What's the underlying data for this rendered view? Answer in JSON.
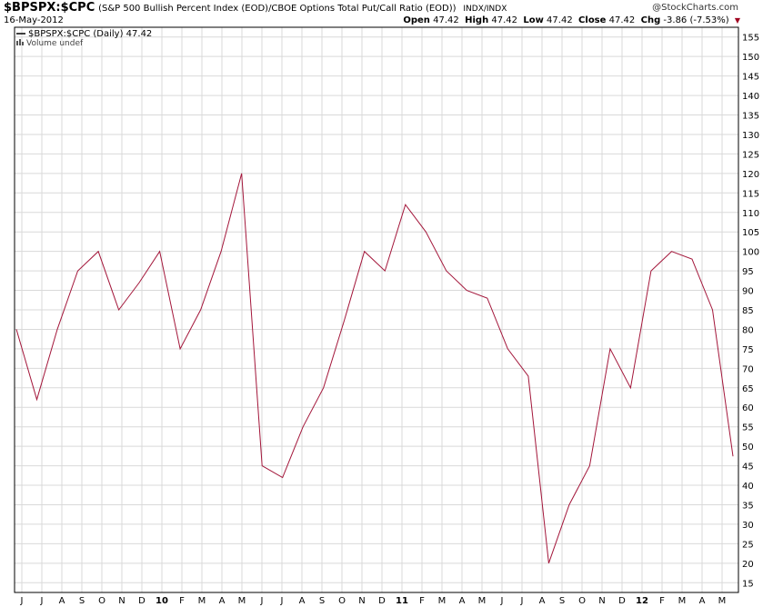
{
  "header": {
    "symbol": "$BPSPX:$CPC",
    "description": "(S&P 500 Bullish Percent Index (EOD)/CBOE Options Total Put/Call Ratio (EOD))",
    "exchange": "INDX/INDX",
    "date": "16-May-2012",
    "brand": "@StockCharts.com",
    "open_label": "Open",
    "open_value": "47.42",
    "high_label": "High",
    "high_value": "47.42",
    "low_label": "Low",
    "low_value": "47.42",
    "close_label": "Close",
    "close_value": "47.42",
    "chg_label": "Chg",
    "chg_value": "-3.86 (-7.53%)"
  },
  "legend": {
    "series_label": "$BPSPX:$CPC (Daily) 47.42",
    "volume_label": "Volume undef"
  },
  "colors": {
    "line": "#a3163a",
    "grid": "#d9d9d9",
    "border": "#000000"
  },
  "chart_data": {
    "type": "line",
    "title": "$BPSPX:$CPC",
    "series": [
      {
        "name": "$BPSPX:$CPC (Daily)",
        "x": [
          "2009-06",
          "2009-07",
          "2009-08",
          "2009-09",
          "2009-10",
          "2009-11",
          "2009-12",
          "2010-01",
          "2010-02",
          "2010-03",
          "2010-04",
          "2010-05",
          "2010-06",
          "2010-07",
          "2010-08",
          "2010-09",
          "2010-10",
          "2010-11",
          "2010-12",
          "2011-01",
          "2011-02",
          "2011-03",
          "2011-04",
          "2011-05",
          "2011-06",
          "2011-07",
          "2011-08",
          "2011-09",
          "2011-10",
          "2011-11",
          "2011-12",
          "2012-01",
          "2012-02",
          "2012-03",
          "2012-04",
          "2012-05"
        ],
        "values": [
          80,
          62,
          80,
          95,
          100,
          85,
          92,
          100,
          75,
          85,
          100,
          120,
          45,
          42,
          55,
          65,
          82,
          100,
          95,
          112,
          105,
          95,
          90,
          88,
          75,
          68,
          20,
          35,
          45,
          75,
          65,
          95,
          100,
          98,
          85,
          47.42
        ]
      }
    ],
    "xticks": [
      "J",
      "J",
      "A",
      "S",
      "O",
      "N",
      "D",
      "10",
      "F",
      "M",
      "A",
      "M",
      "J",
      "J",
      "A",
      "S",
      "O",
      "N",
      "D",
      "11",
      "F",
      "M",
      "A",
      "M",
      "J",
      "J",
      "A",
      "S",
      "O",
      "N",
      "D",
      "12",
      "F",
      "M",
      "A",
      "M"
    ],
    "yticks": [
      15,
      20,
      25,
      30,
      35,
      40,
      45,
      50,
      55,
      60,
      65,
      70,
      75,
      80,
      85,
      90,
      95,
      100,
      105,
      110,
      115,
      120,
      125,
      130,
      135,
      140,
      145,
      150,
      155
    ],
    "ylim": [
      12.5,
      157.5
    ],
    "grid": true,
    "legend_position": "top-left"
  }
}
